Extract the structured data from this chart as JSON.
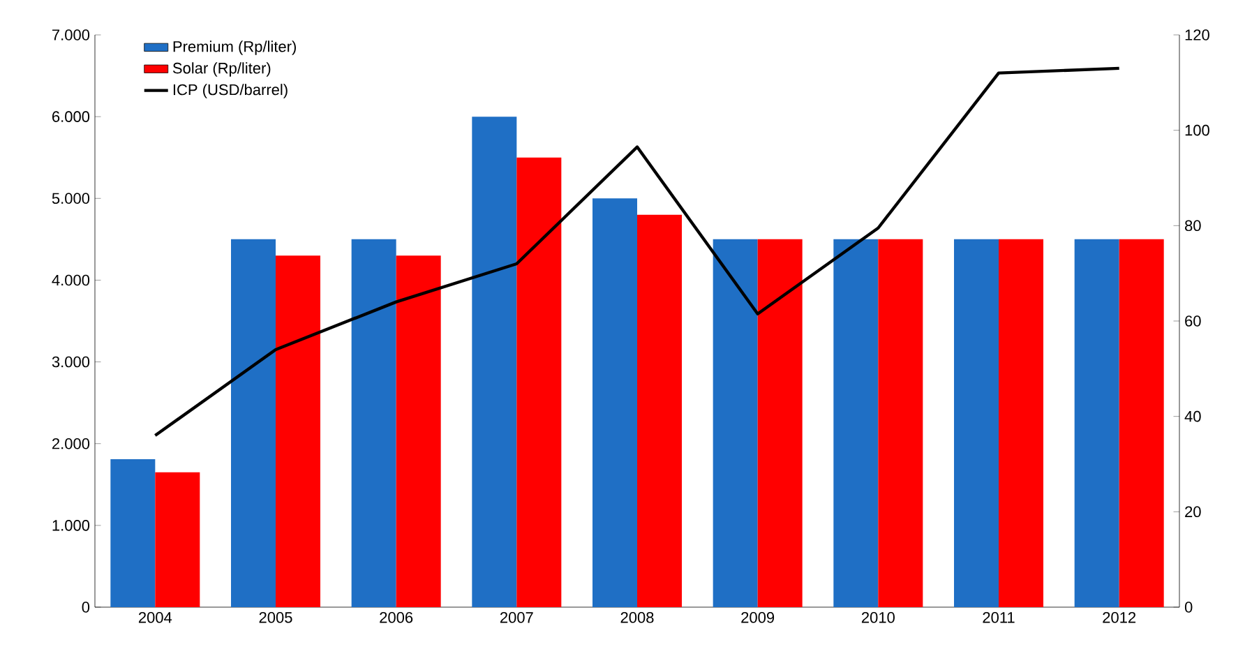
{
  "chart_data": {
    "type": "bar",
    "categories": [
      "2004",
      "2005",
      "2006",
      "2007",
      "2008",
      "2009",
      "2010",
      "2011",
      "2012"
    ],
    "series": [
      {
        "name": "Premium (Rp/liter)",
        "color": "#1f6fc5",
        "values": [
          1810,
          4500,
          4500,
          6000,
          5000,
          4500,
          4500,
          4500,
          4500
        ]
      },
      {
        "name": "Solar (Rp/liter)",
        "color": "#ff0000",
        "values": [
          1650,
          4300,
          4300,
          5500,
          4800,
          4500,
          4500,
          4500,
          4500
        ]
      },
      {
        "name": "ICP (USD/barrel)",
        "color": "#000000",
        "type": "line",
        "axis": "y2",
        "values": [
          36,
          54,
          64,
          72,
          96.5,
          61.5,
          79.5,
          112,
          113
        ]
      }
    ],
    "ylim": [
      0,
      7000
    ],
    "yticks": [
      {
        "value": 0,
        "label": "0"
      },
      {
        "value": 1000,
        "label": "1.000"
      },
      {
        "value": 2000,
        "label": "2.000"
      },
      {
        "value": 3000,
        "label": "3.000"
      },
      {
        "value": 4000,
        "label": "4.000"
      },
      {
        "value": 5000,
        "label": "5.000"
      },
      {
        "value": 6000,
        "label": "6.000"
      },
      {
        "value": 7000,
        "label": "7.000"
      }
    ],
    "y2lim": [
      0,
      120
    ],
    "y2ticks": [
      0,
      20,
      40,
      60,
      80,
      100,
      120
    ],
    "legend": "top left",
    "grid": false
  }
}
